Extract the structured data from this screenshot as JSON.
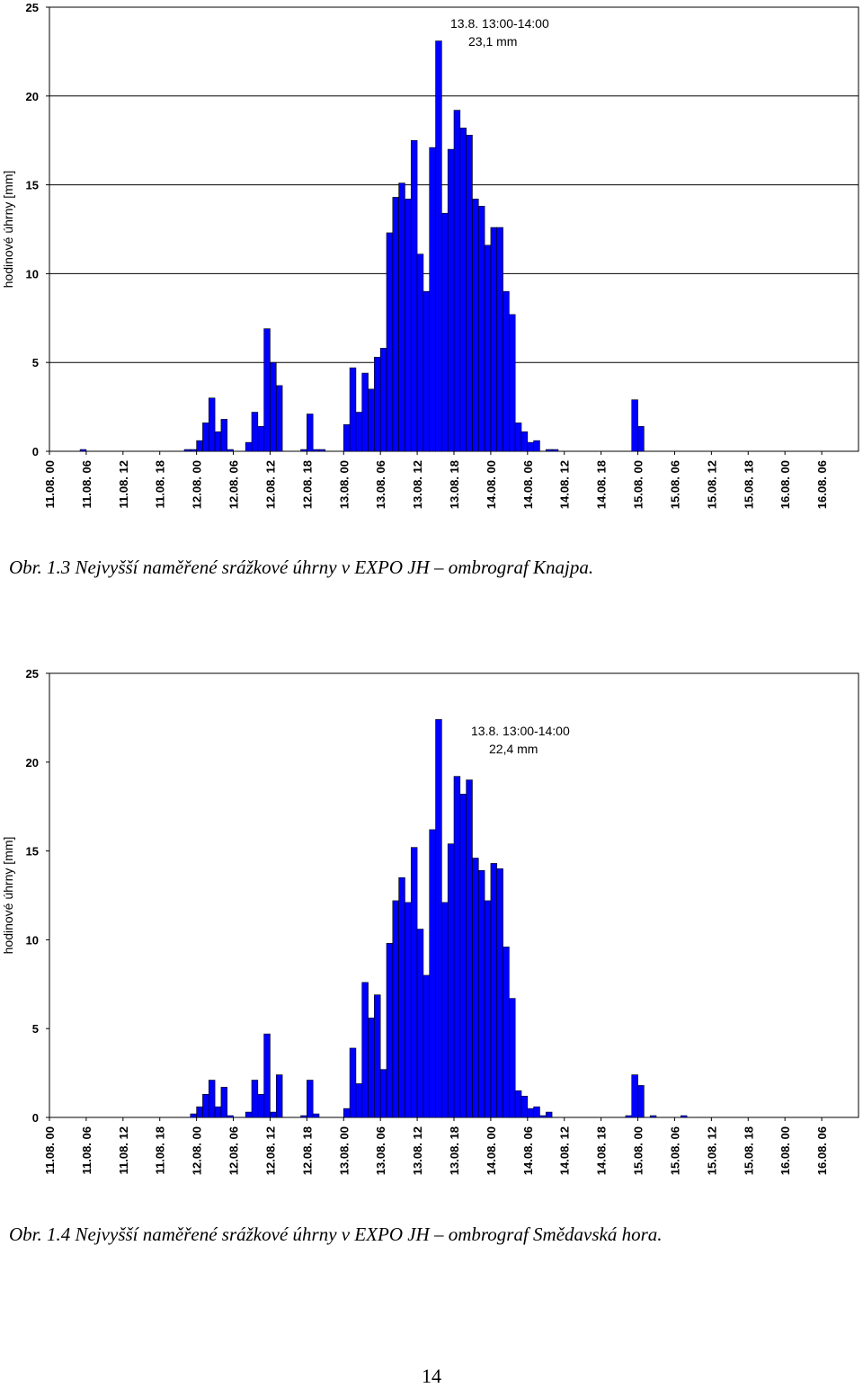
{
  "chart_data": [
    {
      "type": "bar",
      "title": "",
      "xlabel": "",
      "ylabel": "hodinové úhrny [mm]",
      "ylim": [
        0,
        25
      ],
      "yticks": [
        "0",
        "5",
        "10",
        "15",
        "20",
        "25"
      ],
      "grid": true,
      "legend": "none",
      "bar_color": "#0000ff",
      "annotation": [
        "13.8. 13:00-14:00",
        "23,1 mm"
      ],
      "x_tick_labels": [
        "11.08. 00",
        "11.08. 06",
        "11.08. 12",
        "11.08. 18",
        "12.08. 00",
        "12.08. 06",
        "12.08. 12",
        "12.08. 18",
        "13.08. 00",
        "13.08. 06",
        "13.08. 12",
        "13.08. 18",
        "14.08. 00",
        "14.08. 06",
        "14.08. 12",
        "14.08. 18",
        "15.08. 00",
        "15.08. 06",
        "15.08. 12",
        "15.08. 18",
        "16.08. 00",
        "16.08. 06"
      ],
      "values": [
        0,
        0,
        0,
        0,
        0,
        0.1,
        0,
        0,
        0,
        0,
        0,
        0,
        0,
        0,
        0,
        0,
        0,
        0,
        0,
        0,
        0,
        0,
        0.1,
        0.1,
        0.6,
        1.6,
        3.0,
        1.1,
        1.8,
        0.1,
        0,
        0,
        0.5,
        2.2,
        1.4,
        6.9,
        5.0,
        3.7,
        0,
        0,
        0,
        0.1,
        2.1,
        0.1,
        0.1,
        0,
        0,
        0,
        1.5,
        4.7,
        2.2,
        4.4,
        3.5,
        5.3,
        5.8,
        12.3,
        14.3,
        15.1,
        14.2,
        17.5,
        11.1,
        9.0,
        17.1,
        23.1,
        13.4,
        17.0,
        19.2,
        18.2,
        17.8,
        14.2,
        13.8,
        11.6,
        12.6,
        12.6,
        9.0,
        7.7,
        1.6,
        1.1,
        0.5,
        0.6,
        0,
        0.1,
        0.1,
        0,
        0,
        0,
        0,
        0,
        0,
        0,
        0,
        0,
        0,
        0,
        0,
        2.9,
        1.4,
        0,
        0,
        0,
        0,
        0,
        0,
        0,
        0,
        0,
        0,
        0,
        0,
        0,
        0,
        0,
        0,
        0,
        0,
        0,
        0,
        0,
        0,
        0,
        0,
        0,
        0,
        0,
        0,
        0,
        0,
        0,
        0,
        0,
        0,
        0
      ]
    },
    {
      "type": "bar",
      "title": "",
      "xlabel": "",
      "ylabel": "hodinové úhrny [mm]",
      "ylim": [
        0,
        25
      ],
      "yticks": [
        "0",
        "5",
        "10",
        "15",
        "20",
        "25"
      ],
      "grid": false,
      "legend": "none",
      "bar_color": "#0000ff",
      "annotation": [
        "13.8. 13:00-14:00",
        "22,4 mm"
      ],
      "x_tick_labels": [
        "11.08. 00",
        "11.08. 06",
        "11.08. 12",
        "11.08. 18",
        "12.08. 00",
        "12.08. 06",
        "12.08. 12",
        "12.08. 18",
        "13.08. 00",
        "13.08. 06",
        "13.08. 12",
        "13.08. 18",
        "14.08. 00",
        "14.08. 06",
        "14.08. 12",
        "14.08. 18",
        "15.08. 00",
        "15.08. 06",
        "15.08. 12",
        "15.08. 18",
        "16.08. 00",
        "16.08. 06"
      ],
      "values": [
        0,
        0,
        0,
        0,
        0,
        0,
        0,
        0,
        0,
        0,
        0,
        0,
        0,
        0,
        0,
        0,
        0,
        0,
        0,
        0,
        0,
        0,
        0,
        0.2,
        0.6,
        1.3,
        2.1,
        0.6,
        1.7,
        0.1,
        0,
        0,
        0.3,
        2.1,
        1.3,
        4.7,
        0.3,
        2.4,
        0,
        0,
        0,
        0.1,
        2.1,
        0.2,
        0,
        0,
        0,
        0,
        0.5,
        3.9,
        1.9,
        7.6,
        5.6,
        6.9,
        2.7,
        9.8,
        12.2,
        13.5,
        12.1,
        15.2,
        10.6,
        8.0,
        16.2,
        22.4,
        12.1,
        15.4,
        19.2,
        18.2,
        19.0,
        14.6,
        13.9,
        12.2,
        14.3,
        14.0,
        9.6,
        6.7,
        1.5,
        1.2,
        0.5,
        0.6,
        0.1,
        0.3,
        0,
        0,
        0,
        0,
        0,
        0,
        0,
        0,
        0,
        0,
        0,
        0,
        0.1,
        2.4,
        1.8,
        0,
        0.1,
        0,
        0,
        0,
        0,
        0.1,
        0,
        0,
        0,
        0,
        0,
        0,
        0,
        0,
        0,
        0,
        0,
        0,
        0,
        0,
        0,
        0,
        0,
        0,
        0,
        0,
        0,
        0,
        0,
        0,
        0,
        0,
        0,
        0
      ]
    }
  ],
  "captions": [
    "Obr. 1.3 Nejvyšší naměřené srážkové úhrny v EXPO JH – ombrograf Knajpa.",
    "Obr. 1.4 Nejvyšší naměřené srážkové úhrny v EXPO JH – ombrograf Smědavská hora."
  ],
  "page_number": "14"
}
